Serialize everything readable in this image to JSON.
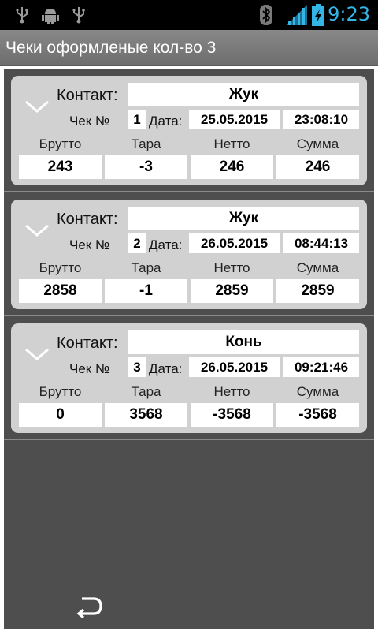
{
  "status_bar": {
    "time": "9:23",
    "icons": [
      "usb-icon",
      "android-debug-icon",
      "usb-icon",
      "bluetooth-icon",
      "signal-icon",
      "battery-charging-icon"
    ],
    "accent_color": "#33b5e5"
  },
  "title": "Чеки оформленые кол-во 3",
  "labels": {
    "contact": "Контакт:",
    "check": "Чек №",
    "date": "Дата:",
    "gross": "Брутто",
    "tare": "Тара",
    "net": "Нетто",
    "sum": "Сумма"
  },
  "checks": [
    {
      "contact": "Жук",
      "number": "1",
      "date": "25.05.2015",
      "time": "23:08:10",
      "gross": "243",
      "tare": "-3",
      "net": "246",
      "sum": "246"
    },
    {
      "contact": "Жук",
      "number": "2",
      "date": "26.05.2015",
      "time": "08:44:13",
      "gross": "2858",
      "tare": "-1",
      "net": "2859",
      "sum": "2859"
    },
    {
      "contact": "Конь",
      "number": "3",
      "date": "26.05.2015",
      "time": "09:21:46",
      "gross": "0",
      "tare": "3568",
      "net": "-3568",
      "sum": "-3568"
    }
  ],
  "footer": {
    "icon": "back-icon"
  }
}
